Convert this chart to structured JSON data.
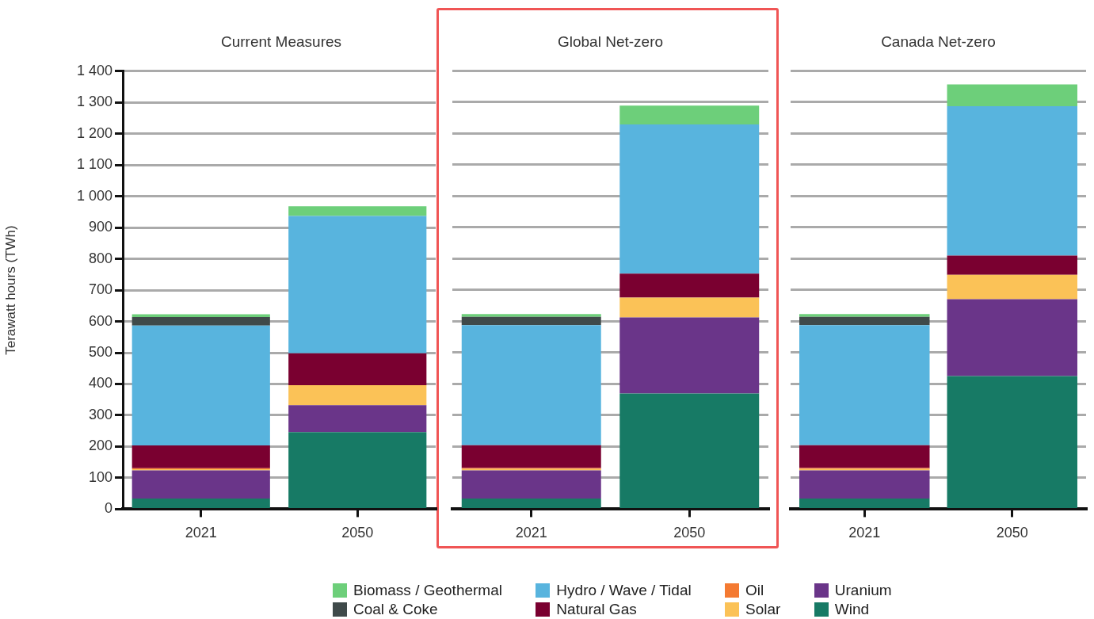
{
  "chart_data": [
    {
      "type": "bar",
      "title": "Current Measures",
      "ylabel": "Terawatt hours (TWh)",
      "categories": [
        "2021",
        "2050"
      ],
      "stacked": true,
      "grid": "y",
      "legend": "bottom",
      "ylim": [
        0,
        1400
      ],
      "yticks": [
        0,
        100,
        200,
        300,
        400,
        500,
        600,
        700,
        800,
        900,
        {
          "value": 1000,
          "label": "1 000"
        },
        {
          "value": 1100,
          "label": "1 100"
        },
        {
          "value": 1200,
          "label": "1 200"
        },
        {
          "value": 1300,
          "label": "1 300"
        },
        {
          "value": 1400,
          "label": "1 400"
        }
      ],
      "series": [
        {
          "name": "Wind",
          "color": "#177a65",
          "values": [
            34,
            246
          ]
        },
        {
          "name": "Uranium",
          "color": "#6a3589",
          "values": [
            90,
            86
          ]
        },
        {
          "name": "Solar",
          "color": "#fbc257",
          "values": [
            4,
            64
          ]
        },
        {
          "name": "Oil",
          "color": "#f47a32",
          "values": [
            3,
            0
          ]
        },
        {
          "name": "Natural Gas",
          "color": "#7a0030",
          "values": [
            73,
            102
          ]
        },
        {
          "name": "Hydro / Wave / Tidal",
          "color": "#58b4de",
          "values": [
            383,
            439
          ]
        },
        {
          "name": "Coal & Coke",
          "color": "#3f4a4a",
          "values": [
            27,
            0
          ]
        },
        {
          "name": "Biomass / Geothermal",
          "color": "#6dcf7a",
          "values": [
            9,
            31
          ]
        }
      ]
    },
    {
      "type": "bar",
      "title": "Global Net-zero",
      "categories": [
        "2021",
        "2050"
      ],
      "stacked": true,
      "grid": "y",
      "tick_labels": "x",
      "ylim": [
        0,
        1400
      ],
      "yticks": [
        0,
        100,
        200,
        300,
        400,
        500,
        600,
        700,
        800,
        900,
        1000,
        1100,
        1200,
        1300,
        1400
      ],
      "series": [
        {
          "color": "#177a65",
          "values": [
            34,
            369
          ]
        },
        {
          "color": "#6a3589",
          "values": [
            90,
            243
          ]
        },
        {
          "color": "#fbc257",
          "values": [
            4,
            63
          ]
        },
        {
          "color": "#f47a32",
          "values": [
            3,
            0
          ]
        },
        {
          "color": "#7a0030",
          "values": [
            73,
            77
          ]
        },
        {
          "color": "#58b4de",
          "values": [
            383,
            476
          ]
        },
        {
          "color": "#3f4a4a",
          "values": [
            27,
            0
          ]
        },
        {
          "color": "#6dcf7a",
          "values": [
            9,
            60
          ]
        }
      ]
    },
    {
      "type": "bar",
      "title": "Canada Net-zero",
      "categories": [
        "2021",
        "2050"
      ],
      "stacked": true,
      "grid": "y",
      "tick_labels": "x",
      "ylim": [
        0,
        1400
      ],
      "yticks": [
        0,
        100,
        200,
        300,
        400,
        500,
        600,
        700,
        800,
        900,
        1000,
        1100,
        1200,
        1300,
        1400
      ],
      "series": [
        {
          "color": "#177a65",
          "values": [
            34,
            425
          ]
        },
        {
          "color": "#6a3589",
          "values": [
            90,
            245
          ]
        },
        {
          "color": "#fbc257",
          "values": [
            4,
            78
          ]
        },
        {
          "color": "#f47a32",
          "values": [
            3,
            0
          ]
        },
        {
          "color": "#7a0030",
          "values": [
            73,
            61
          ]
        },
        {
          "color": "#58b4de",
          "values": [
            383,
            477
          ]
        },
        {
          "color": "#3f4a4a",
          "values": [
            27,
            0
          ]
        },
        {
          "color": "#6dcf7a",
          "values": [
            9,
            70
          ]
        }
      ]
    }
  ]
}
